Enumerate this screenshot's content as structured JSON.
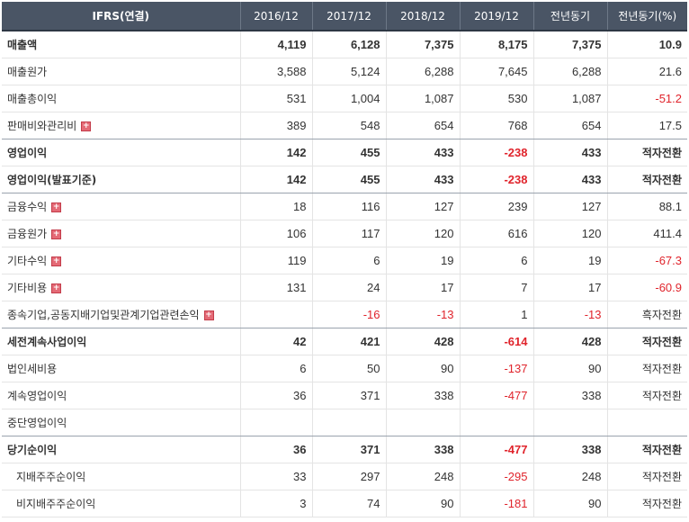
{
  "header": {
    "label": "IFRS(연결)",
    "columns": [
      "2016/12",
      "2017/12",
      "2018/12",
      "2019/12",
      "전년동기",
      "전년동기(%)"
    ]
  },
  "icons": {
    "expand": "plus-square-icon"
  },
  "colors": {
    "negative": "#e0242c",
    "header_bg": "#4a5565"
  },
  "rows": [
    {
      "label": "매출액",
      "values": [
        "4,119",
        "6,128",
        "7,375",
        "8,175",
        "7,375",
        "10.9"
      ]
    },
    {
      "label": "매출원가",
      "values": [
        "3,588",
        "5,124",
        "6,288",
        "7,645",
        "6,288",
        "21.6"
      ]
    },
    {
      "label": "매출총이익",
      "values": [
        "531",
        "1,004",
        "1,087",
        "530",
        "1,087",
        "-51.2"
      ]
    },
    {
      "label": "판매비와관리비",
      "values": [
        "389",
        "548",
        "654",
        "768",
        "654",
        "17.5"
      ]
    },
    {
      "label": "영업이익",
      "values": [
        "142",
        "455",
        "433",
        "-238",
        "433",
        "적자전환"
      ]
    },
    {
      "label": "영업이익(발표기준)",
      "values": [
        "142",
        "455",
        "433",
        "-238",
        "433",
        "적자전환"
      ]
    },
    {
      "label": "금융수익",
      "values": [
        "18",
        "116",
        "127",
        "239",
        "127",
        "88.1"
      ]
    },
    {
      "label": "금융원가",
      "values": [
        "106",
        "117",
        "120",
        "616",
        "120",
        "411.4"
      ]
    },
    {
      "label": "기타수익",
      "values": [
        "119",
        "6",
        "19",
        "6",
        "19",
        "-67.3"
      ]
    },
    {
      "label": "기타비용",
      "values": [
        "131",
        "24",
        "17",
        "7",
        "17",
        "-60.9"
      ]
    },
    {
      "label": "종속기업,공동지배기업및관계기업관련손익",
      "values": [
        "",
        "-16",
        "-13",
        "1",
        "-13",
        "흑자전환"
      ]
    },
    {
      "label": "세전계속사업이익",
      "values": [
        "42",
        "421",
        "428",
        "-614",
        "428",
        "적자전환"
      ]
    },
    {
      "label": "법인세비용",
      "values": [
        "6",
        "50",
        "90",
        "-137",
        "90",
        "적자전환"
      ]
    },
    {
      "label": "계속영업이익",
      "values": [
        "36",
        "371",
        "338",
        "-477",
        "338",
        "적자전환"
      ]
    },
    {
      "label": "중단영업이익",
      "values": [
        "",
        "",
        "",
        "",
        "",
        ""
      ]
    },
    {
      "label": "당기순이익",
      "values": [
        "36",
        "371",
        "338",
        "-477",
        "338",
        "적자전환"
      ]
    },
    {
      "label": "지배주주순이익",
      "values": [
        "33",
        "297",
        "248",
        "-295",
        "248",
        "적자전환"
      ]
    },
    {
      "label": "비지배주주순이익",
      "values": [
        "3",
        "74",
        "90",
        "-181",
        "90",
        "적자전환"
      ]
    }
  ]
}
